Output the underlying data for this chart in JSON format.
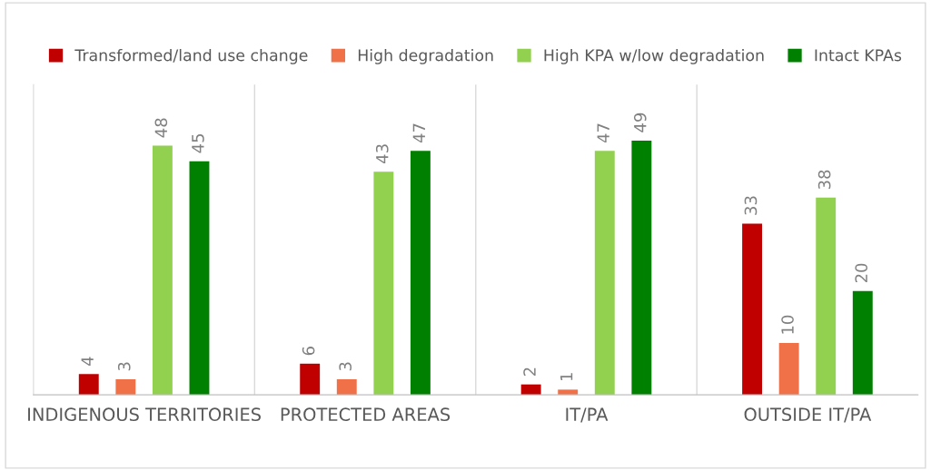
{
  "chart_data": {
    "type": "bar",
    "categories": [
      "INDIGENOUS TERRITORIES",
      "PROTECTED AREAS",
      "IT/PA",
      "OUTSIDE IT/PA"
    ],
    "series": [
      {
        "name": "Transformed/land use change",
        "color": "#c00000",
        "values": [
          4,
          6,
          2,
          33
        ]
      },
      {
        "name": "High degradation",
        "color": "#f07048",
        "values": [
          3,
          3,
          1,
          10
        ]
      },
      {
        "name": "High KPA w/low degradation",
        "color": "#92d050",
        "values": [
          48,
          43,
          47,
          38
        ]
      },
      {
        "name": "Intact KPAs",
        "color": "#008000",
        "values": [
          45,
          47,
          49,
          20
        ]
      }
    ],
    "data_labels": true,
    "grid": "x",
    "legend": "top",
    "tick_labels": "x"
  }
}
